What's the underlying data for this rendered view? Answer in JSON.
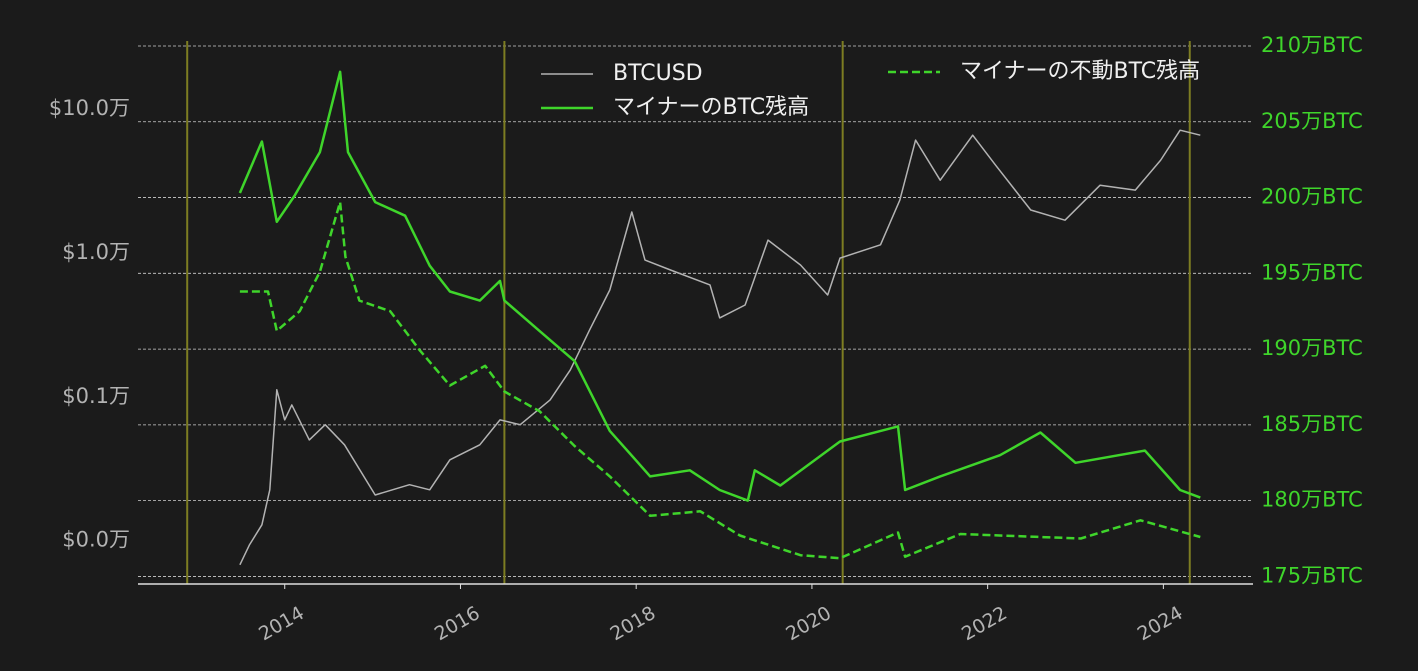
{
  "chart_data": {
    "type": "line",
    "xlim": [
      2012.33,
      2025.02
    ],
    "xticks": [
      2014,
      2016,
      2018,
      2020,
      2022,
      2024
    ],
    "ylim": [
      50,
      275000
    ],
    "log_y": true,
    "yticks": [
      {
        "value": 100,
        "label": "$0.0万"
      },
      {
        "value": 1000,
        "label": "$0.1万"
      },
      {
        "value": 10000,
        "label": "$1.0万"
      },
      {
        "value": 100000,
        "label": "$10.0万"
      }
    ],
    "y2lim": [
      174.5,
      210
    ],
    "y2ticks": [
      {
        "value": 175,
        "label": "175万BTC"
      },
      {
        "value": 180,
        "label": "180万BTC"
      },
      {
        "value": 185,
        "label": "185万BTC"
      },
      {
        "value": 190,
        "label": "190万BTC"
      },
      {
        "value": 195,
        "label": "195万BTC"
      },
      {
        "value": 200,
        "label": "200万BTC"
      },
      {
        "value": 205,
        "label": "205万BTC"
      },
      {
        "value": 210,
        "label": "210万BTC"
      }
    ],
    "grid": true,
    "legend": "upper center",
    "vlines": [
      2012.89,
      2016.5,
      2020.35,
      2024.3
    ],
    "vline_color": "#7d7d22",
    "series": [
      {
        "name": "BTCUSD",
        "color": "#b3b3b3",
        "axis": "y",
        "linestyle": "solid",
        "x": [
          2013.49,
          2013.6,
          2013.74,
          2013.83,
          2013.91,
          2014.0,
          2014.08,
          2014.28,
          2014.46,
          2014.68,
          2015.03,
          2015.42,
          2015.65,
          2015.88,
          2016.22,
          2016.45,
          2016.68,
          2017.02,
          2017.25,
          2017.47,
          2017.7,
          2017.95,
          2018.1,
          2018.39,
          2018.84,
          2018.95,
          2019.24,
          2019.5,
          2019.87,
          2020.18,
          2020.32,
          2020.78,
          2021.0,
          2021.18,
          2021.46,
          2021.83,
          2022.09,
          2022.49,
          2022.88,
          2023.28,
          2023.68,
          2023.97,
          2024.19,
          2024.42
        ],
        "values": [
          68,
          94,
          129,
          226,
          1120,
          692,
          880,
          502,
          640,
          464,
          208,
          245,
          226,
          365,
          464,
          692,
          640,
          953,
          1540,
          2920,
          5530,
          19300,
          8930,
          7620,
          6000,
          3540,
          4350,
          12300,
          8260,
          5110,
          9220,
          11400,
          23300,
          61000,
          32100,
          65900,
          40800,
          19900,
          16900,
          29600,
          27400,
          44300,
          71400,
          65900
        ]
      },
      {
        "name": "マイナーのBTC残高",
        "color": "#3fd52b",
        "axis": "y2",
        "linestyle": "solid",
        "x": [
          2013.49,
          2013.74,
          2013.91,
          2014.11,
          2014.4,
          2014.63,
          2014.72,
          2015.03,
          2015.37,
          2015.65,
          2015.88,
          2016.22,
          2016.45,
          2016.5,
          2016.9,
          2017.3,
          2017.7,
          2018.16,
          2018.61,
          2018.95,
          2019.27,
          2019.35,
          2019.64,
          2020.32,
          2020.98,
          2021.06,
          2021.46,
          2022.14,
          2022.6,
          2023.0,
          2023.79,
          2024.19,
          2024.42
        ],
        "values": [
          200.3,
          203.7,
          198.4,
          200.1,
          203.0,
          208.3,
          203.0,
          199.7,
          198.8,
          195.5,
          193.8,
          193.2,
          194.5,
          193.2,
          191.2,
          189.2,
          184.6,
          181.6,
          182.0,
          180.7,
          180.0,
          182.0,
          181.0,
          183.9,
          184.9,
          180.7,
          181.6,
          183.0,
          184.5,
          182.5,
          183.3,
          180.7,
          180.2
        ]
      },
      {
        "name": "マイナーの不動BTC残高",
        "color": "#3fd52b",
        "axis": "y2",
        "linestyle": "dashed",
        "x": [
          2013.49,
          2013.81,
          2013.91,
          2014.17,
          2014.4,
          2014.63,
          2014.69,
          2014.85,
          2015.2,
          2015.54,
          2015.88,
          2016.28,
          2016.5,
          2016.9,
          2017.3,
          2017.7,
          2018.16,
          2018.73,
          2019.18,
          2019.87,
          2020.32,
          2020.98,
          2021.06,
          2021.69,
          2023.06,
          2023.74,
          2024.42
        ],
        "values": [
          193.8,
          193.8,
          191.2,
          192.5,
          195.1,
          199.7,
          196.1,
          193.2,
          192.5,
          189.9,
          187.6,
          188.9,
          187.2,
          185.9,
          183.6,
          181.6,
          179.0,
          179.3,
          177.7,
          176.4,
          176.2,
          177.9,
          176.3,
          177.8,
          177.5,
          178.7,
          177.6
        ]
      }
    ]
  }
}
